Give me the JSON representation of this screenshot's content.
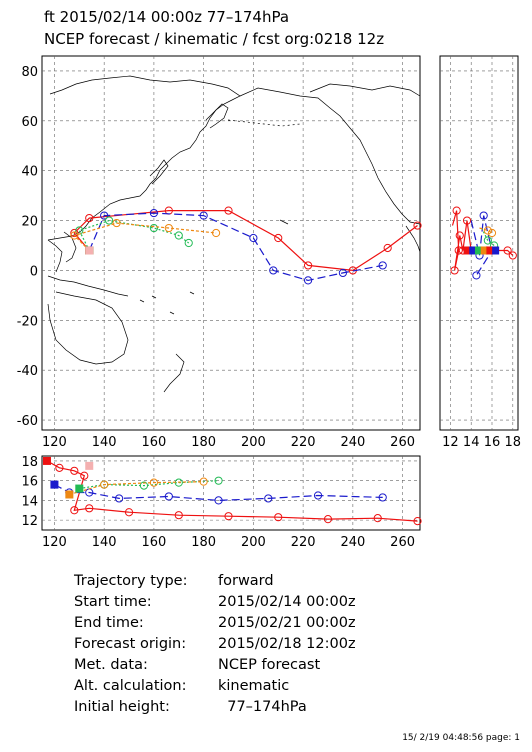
{
  "header": {
    "line1": "ft 2015/02/14 00:00z  77–174hPa",
    "line2": "NCEP forecast / kinematic / fcst org:0218 12z"
  },
  "colors": {
    "red": "#ee1111",
    "blue": "#1a1acc",
    "green": "#22bb55",
    "orange": "#ee8811",
    "pink": "#f4b0b0",
    "coast": "#000000"
  },
  "chart_data": [
    {
      "type": "line",
      "panel": "map",
      "xlim": [
        115,
        267
      ],
      "ylim": [
        -64,
        86
      ],
      "x_ticks": [
        "120",
        "140",
        "160",
        "180",
        "200",
        "220",
        "240",
        "260"
      ],
      "y_ticks": [
        "80",
        "60",
        "40",
        "20",
        "0",
        "-20",
        "-40",
        "-60"
      ],
      "grid": true,
      "series": [
        {
          "color": "red",
          "points": [
            [
              134,
              8
            ],
            [
              128,
              15
            ],
            [
              134,
              21
            ],
            [
              166,
              24
            ],
            [
              190,
              24
            ],
            [
              210,
              13
            ],
            [
              222,
              2
            ],
            [
              240,
              0
            ],
            [
              254,
              9
            ],
            [
              266,
              18
            ]
          ]
        },
        {
          "color": "blue",
          "points": [
            [
              134,
              8
            ],
            [
              140,
              22
            ],
            [
              160,
              23
            ],
            [
              180,
              22
            ],
            [
              200,
              13
            ],
            [
              208,
              0
            ],
            [
              222,
              -4
            ],
            [
              236,
              -1
            ],
            [
              252,
              2
            ]
          ]
        },
        {
          "color": "green",
          "points": [
            [
              134,
              8
            ],
            [
              130,
              16
            ],
            [
              142,
              20
            ],
            [
              160,
              17
            ],
            [
              170,
              14
            ],
            [
              174,
              11
            ]
          ]
        },
        {
          "color": "orange",
          "points": [
            [
              134,
              8
            ],
            [
              128,
              14
            ],
            [
              145,
              19
            ],
            [
              166,
              17
            ],
            [
              185,
              15
            ]
          ]
        }
      ]
    },
    {
      "type": "line",
      "panel": "height-vs-longitude",
      "xlim": [
        115,
        267
      ],
      "ylim": [
        11,
        18.5
      ],
      "x_ticks": [
        "120",
        "140",
        "160",
        "180",
        "200",
        "220",
        "240",
        "260"
      ],
      "y_ticks": [
        "18",
        "16",
        "14",
        "12"
      ],
      "grid": true,
      "series": [
        {
          "color": "red",
          "points": [
            [
              117,
              18
            ],
            [
              122,
              17.3
            ],
            [
              128,
              17
            ],
            [
              132,
              16.5
            ],
            [
              128,
              13
            ],
            [
              134,
              13.2
            ],
            [
              150,
              12.8
            ],
            [
              170,
              12.5
            ],
            [
              190,
              12.4
            ],
            [
              210,
              12.3
            ],
            [
              230,
              12.1
            ],
            [
              250,
              12.2
            ],
            [
              266,
              11.9
            ]
          ]
        },
        {
          "color": "blue",
          "points": [
            [
              120,
              15.6
            ],
            [
              126,
              14.8
            ],
            [
              134,
              14.8
            ],
            [
              146,
              14.2
            ],
            [
              166,
              14.4
            ],
            [
              186,
              14.0
            ],
            [
              206,
              14.2
            ],
            [
              226,
              14.5
            ],
            [
              252,
              14.3
            ]
          ]
        },
        {
          "color": "green",
          "points": [
            [
              130,
              15.2
            ],
            [
              140,
              15.6
            ],
            [
              156,
              15.5
            ],
            [
              170,
              15.8
            ],
            [
              186,
              16.0
            ]
          ]
        },
        {
          "color": "orange",
          "points": [
            [
              126,
              14.6
            ],
            [
              140,
              15.6
            ],
            [
              160,
              15.8
            ],
            [
              180,
              15.9
            ]
          ]
        }
      ]
    },
    {
      "type": "line",
      "panel": "height-vs-latitude",
      "xlim": [
        11,
        18.5
      ],
      "ylim": [
        -64,
        86
      ],
      "x_ticks": [
        "12",
        "14",
        "16",
        "18"
      ],
      "grid": true,
      "series": [
        {
          "color": "red",
          "points": [
            [
              12.2,
              18
            ],
            [
              12.6,
              24
            ],
            [
              12.8,
              8
            ],
            [
              12.4,
              0
            ],
            [
              12.9,
              14
            ],
            [
              13.2,
              8
            ],
            [
              13.6,
              20
            ],
            [
              14.0,
              8
            ],
            [
              15.5,
              8
            ],
            [
              17.5,
              8
            ],
            [
              18,
              6
            ]
          ]
        },
        {
          "color": "blue",
          "points": [
            [
              14.0,
              20
            ],
            [
              14.8,
              6
            ],
            [
              15.2,
              22
            ],
            [
              16.0,
              8
            ],
            [
              14.5,
              -2
            ]
          ]
        },
        {
          "color": "green",
          "points": [
            [
              15.0,
              17
            ],
            [
              15.6,
              12
            ],
            [
              16.2,
              10
            ]
          ]
        },
        {
          "color": "orange",
          "points": [
            [
              14.8,
              17
            ],
            [
              15.6,
              16
            ],
            [
              16.0,
              15
            ]
          ]
        }
      ]
    }
  ],
  "info": {
    "rows": [
      {
        "label": "Trajectory type:",
        "value": "forward"
      },
      {
        "label": "Start time:",
        "value": "2015/02/14 00:00z"
      },
      {
        "label": "End time:",
        "value": "2015/02/21 00:00z"
      },
      {
        "label": "Forecast origin:",
        "value": "2015/02/18 12:00z"
      },
      {
        "label": "Met. data:",
        "value": "NCEP forecast"
      },
      {
        "label": "Alt. calculation:",
        "value": "kinematic"
      },
      {
        "label": "Initial height:",
        "value": "  77–174hPa"
      }
    ]
  },
  "footer": "15/ 2/19 04:48:56 page: 1"
}
